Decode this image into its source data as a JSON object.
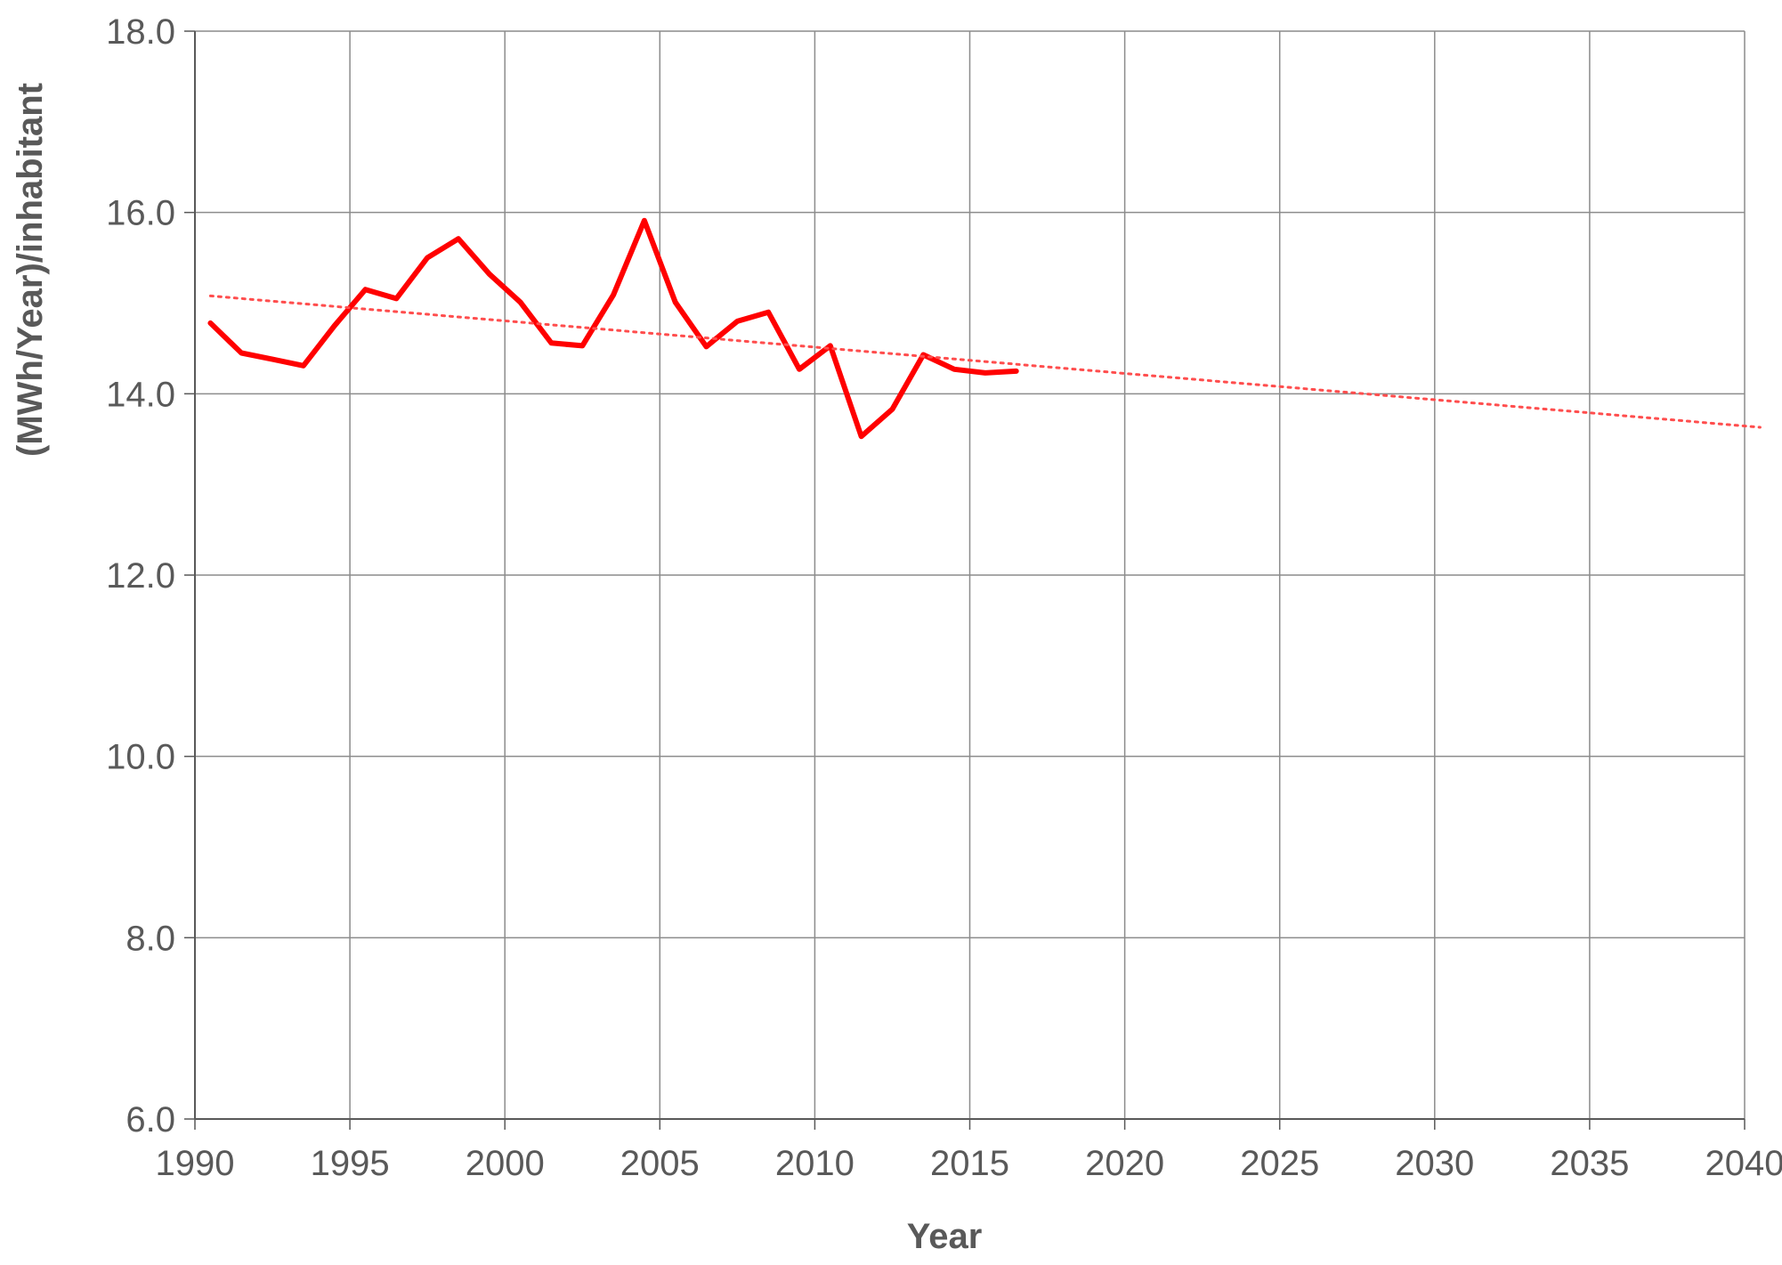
{
  "chart_data": {
    "type": "line",
    "title": "",
    "xlabel": "Year",
    "ylabel": "(MWh/Year)/inhabitant",
    "xlim": [
      1990,
      2040
    ],
    "ylim": [
      6.0,
      18.0
    ],
    "x_ticks": [
      1990,
      1995,
      2000,
      2005,
      2010,
      2015,
      2020,
      2025,
      2030,
      2035,
      2040
    ],
    "x_tick_labels": [
      "1990",
      "1995",
      "2000",
      "2005",
      "2010",
      "2015",
      "2020",
      "2025",
      "2030",
      "2035",
      "2040"
    ],
    "y_ticks": [
      6,
      8,
      10,
      12,
      14,
      16,
      18
    ],
    "y_tick_labels": [
      "6.0",
      "8.0",
      "10.0",
      "12.0",
      "14.0",
      "16.0",
      "18.0"
    ],
    "grid": true,
    "legend": "none",
    "series": [
      {
        "style": "solid",
        "color": "#FF0000",
        "x": [
          1990.5,
          1991.5,
          1992.5,
          1993.5,
          1994.5,
          1995.5,
          1996.5,
          1997.5,
          1998.5,
          1999.5,
          2000.5,
          2001.5,
          2002.5,
          2003.5,
          2004.5,
          2005.5,
          2006.5,
          2007.5,
          2008.5,
          2009.5,
          2010.5,
          2011.5,
          2012.5,
          2013.5,
          2014.5,
          2015.5,
          2016.5
        ],
        "values": [
          14.78,
          14.45,
          14.38,
          14.31,
          14.75,
          15.15,
          15.05,
          15.5,
          15.71,
          15.32,
          15.01,
          14.56,
          14.53,
          15.09,
          15.91,
          15.01,
          14.52,
          14.8,
          14.9,
          14.27,
          14.53,
          13.53,
          13.83,
          14.43,
          14.27,
          14.23,
          14.25
        ]
      },
      {
        "style": "dotted-trendline",
        "color": "#FF4D4D",
        "x": [
          1990.5,
          2040.5
        ],
        "values": [
          15.08,
          13.63
        ]
      }
    ]
  }
}
